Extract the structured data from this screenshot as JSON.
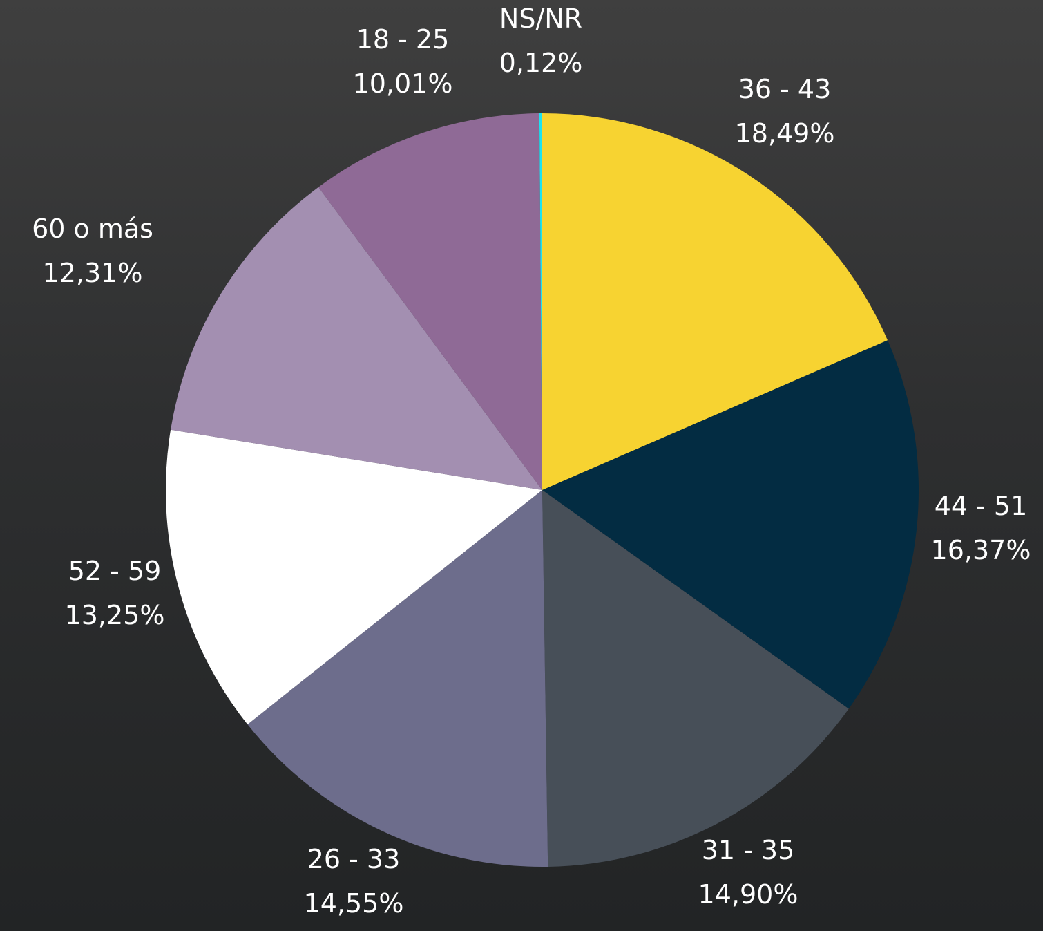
{
  "chart_data": {
    "type": "pie",
    "title": "",
    "start_angle_deg": 0,
    "direction": "clockwise",
    "slices": [
      {
        "label": "36 - 43",
        "value": 18.49,
        "value_label": "18,49%",
        "color": "#f7d331"
      },
      {
        "label": "44 - 51",
        "value": 16.37,
        "value_label": "16,37%",
        "color": "#032c42"
      },
      {
        "label": "31 - 35",
        "value": 14.9,
        "value_label": "14,90%",
        "color": "#474f58"
      },
      {
        "label": "26 - 33",
        "value": 14.55,
        "value_label": "14,55%",
        "color": "#6d6d8c"
      },
      {
        "label": "52 - 59",
        "value": 13.25,
        "value_label": "13,25%",
        "color": "#ffffff"
      },
      {
        "label": "60 o más",
        "value": 12.31,
        "value_label": "12,31%",
        "color": "#a38fb1"
      },
      {
        "label": "18 - 25",
        "value": 10.01,
        "value_label": "10,01%",
        "color": "#8f6a96"
      },
      {
        "label": "NS/NR",
        "value": 0.12,
        "value_label": "0,12%",
        "color": "#1ee3f0"
      }
    ]
  }
}
